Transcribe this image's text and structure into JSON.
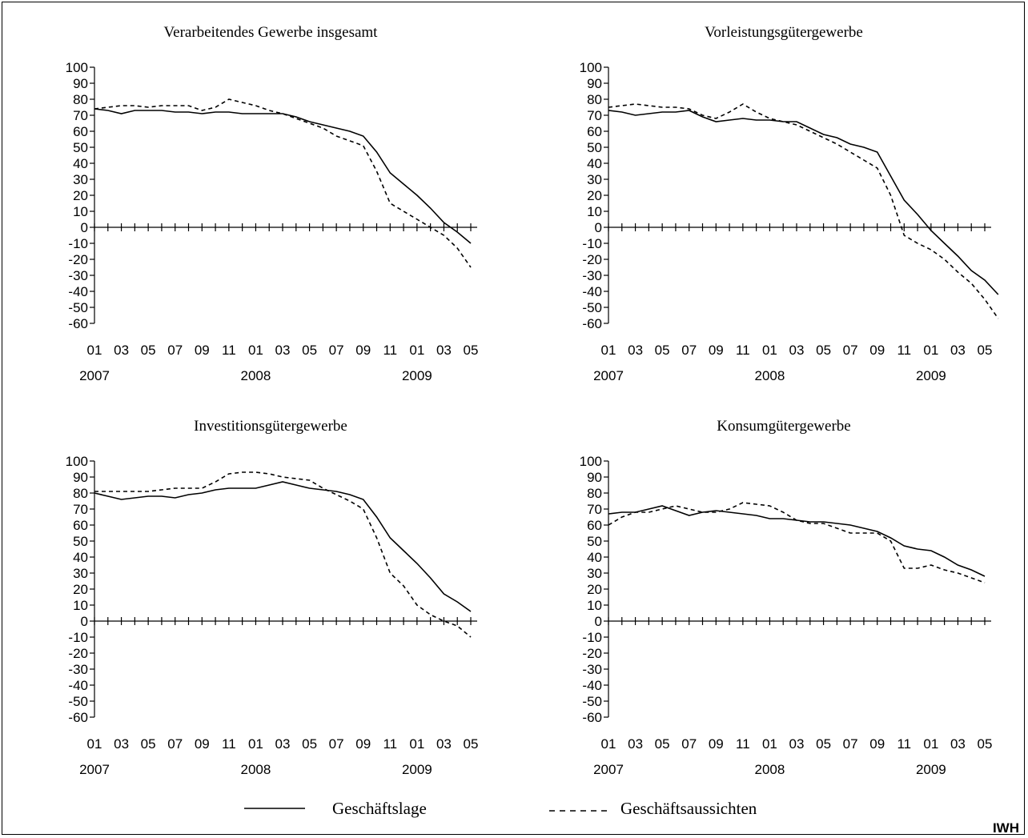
{
  "chart_data": [
    {
      "type": "line",
      "title": "Verarbeitendes Gewerbe insgesamt",
      "ylim": [
        -60,
        100
      ],
      "yticks": [
        "100",
        "90",
        "80",
        "70",
        "60",
        "50",
        "40",
        "30",
        "20",
        "10",
        "0",
        "-10",
        "-20",
        "-30",
        "-40",
        "-50",
        "-60"
      ],
      "xticks": [
        "01",
        "03",
        "05",
        "07",
        "09",
        "11",
        "01",
        "03",
        "05",
        "07",
        "09",
        "11",
        "01",
        "03",
        "05"
      ],
      "years": [
        "2007",
        "2008",
        "2009"
      ],
      "series": [
        {
          "name": "Geschäftslage",
          "values": [
            74,
            73,
            71,
            73,
            73,
            73,
            72,
            72,
            71,
            72,
            72,
            71,
            71,
            71,
            71,
            69,
            66,
            64,
            62,
            60,
            57,
            47,
            34,
            27,
            20,
            12,
            3,
            -3,
            -10
          ]
        },
        {
          "name": "Geschäftsaussichten",
          "values": [
            74,
            75,
            76,
            76,
            75,
            76,
            76,
            76,
            73,
            75,
            80,
            78,
            76,
            73,
            71,
            68,
            65,
            62,
            57,
            54,
            51,
            35,
            15,
            10,
            5,
            0,
            -5,
            -13,
            -25
          ]
        }
      ]
    },
    {
      "type": "line",
      "title": "Vorleistungsgütergewerbe",
      "ylim": [
        -60,
        100
      ],
      "yticks": [
        "100",
        "90",
        "80",
        "70",
        "60",
        "50",
        "40",
        "30",
        "20",
        "10",
        "0",
        "-10",
        "-20",
        "-30",
        "-40",
        "-50",
        "-60"
      ],
      "xticks": [
        "01",
        "03",
        "05",
        "07",
        "09",
        "11",
        "01",
        "03",
        "05",
        "07",
        "09",
        "11",
        "01",
        "03",
        "05"
      ],
      "years": [
        "2007",
        "2008",
        "2009"
      ],
      "series": [
        {
          "name": "Geschäftslage",
          "values": [
            73,
            72,
            70,
            71,
            72,
            72,
            73,
            69,
            66,
            67,
            68,
            67,
            67,
            66,
            66,
            62,
            58,
            56,
            52,
            50,
            47,
            32,
            17,
            8,
            -2,
            -10,
            -18,
            -27,
            -33,
            -42
          ]
        },
        {
          "name": "Geschäftsaussichten",
          "values": [
            75,
            76,
            77,
            76,
            75,
            75,
            74,
            70,
            68,
            72,
            77,
            72,
            68,
            66,
            64,
            60,
            56,
            52,
            47,
            42,
            37,
            20,
            -5,
            -10,
            -14,
            -20,
            -28,
            -35,
            -45,
            -57
          ]
        }
      ]
    },
    {
      "type": "line",
      "title": "Investitionsgütergewerbe",
      "ylim": [
        -60,
        100
      ],
      "yticks": [
        "100",
        "90",
        "80",
        "70",
        "60",
        "50",
        "40",
        "30",
        "20",
        "10",
        "0",
        "-10",
        "-20",
        "-30",
        "-40",
        "-50",
        "-60"
      ],
      "xticks": [
        "01",
        "03",
        "05",
        "07",
        "09",
        "11",
        "01",
        "03",
        "05",
        "07",
        "09",
        "11",
        "01",
        "03",
        "05"
      ],
      "years": [
        "2007",
        "2008",
        "2009"
      ],
      "series": [
        {
          "name": "Geschäftslage",
          "values": [
            80,
            78,
            76,
            77,
            78,
            78,
            77,
            79,
            80,
            82,
            83,
            83,
            83,
            85,
            87,
            85,
            83,
            82,
            81,
            79,
            76,
            65,
            52,
            44,
            36,
            27,
            17,
            12,
            6
          ]
        },
        {
          "name": "Geschäftsaussichten",
          "values": [
            81,
            81,
            81,
            81,
            81,
            82,
            83,
            83,
            83,
            87,
            92,
            93,
            93,
            92,
            90,
            89,
            88,
            83,
            79,
            75,
            70,
            52,
            30,
            22,
            10,
            4,
            0,
            -3,
            -10
          ]
        }
      ]
    },
    {
      "type": "line",
      "title": "Konsumgütergewerbe",
      "ylim": [
        -60,
        100
      ],
      "yticks": [
        "100",
        "90",
        "80",
        "70",
        "60",
        "50",
        "40",
        "30",
        "20",
        "10",
        "0",
        "-10",
        "-20",
        "-30",
        "-40",
        "-50",
        "-60"
      ],
      "xticks": [
        "01",
        "03",
        "05",
        "07",
        "09",
        "11",
        "01",
        "03",
        "05",
        "07",
        "09",
        "11",
        "01",
        "03",
        "05"
      ],
      "years": [
        "2007",
        "2008",
        "2009"
      ],
      "series": [
        {
          "name": "Geschäftslage",
          "values": [
            67,
            68,
            68,
            70,
            72,
            69,
            66,
            68,
            69,
            68,
            67,
            66,
            64,
            64,
            63,
            62,
            62,
            61,
            60,
            58,
            56,
            52,
            47,
            45,
            44,
            40,
            35,
            32,
            28
          ]
        },
        {
          "name": "Geschäftsaussichten",
          "values": [
            60,
            65,
            68,
            68,
            70,
            72,
            70,
            68,
            68,
            70,
            74,
            73,
            72,
            68,
            63,
            61,
            61,
            58,
            55,
            55,
            55,
            50,
            33,
            33,
            35,
            32,
            30,
            27,
            24
          ]
        }
      ]
    }
  ],
  "legend": {
    "solid_label": "Geschäftslage",
    "dashed_label": "Geschäftsaussichten"
  },
  "brand": "IWH"
}
